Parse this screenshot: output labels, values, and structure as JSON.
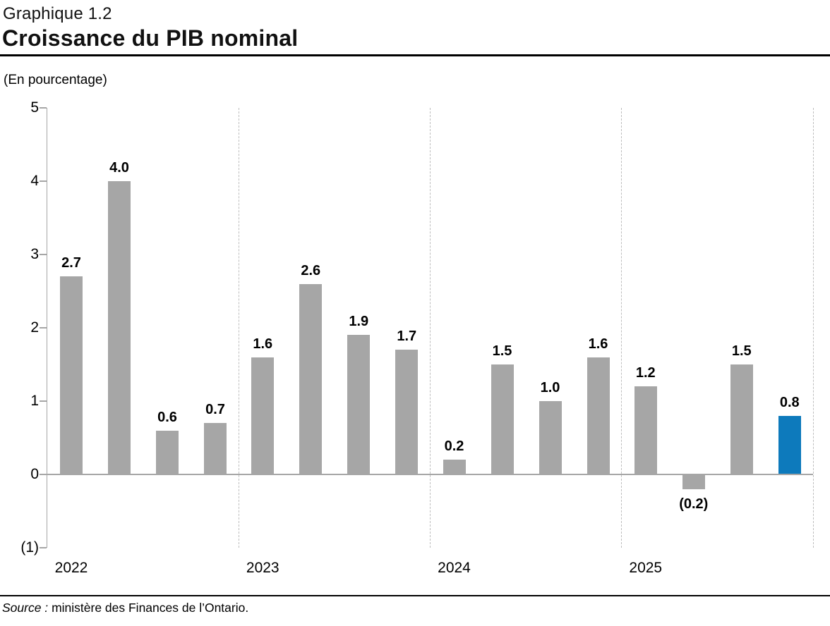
{
  "header": {
    "kicker": "Graphique 1.2",
    "title": "Croissance du PIB nominal"
  },
  "axis_note": "(En pourcentage)",
  "footer": {
    "source_label": "Source :",
    "source_text": "ministère des Finances de l’Ontario."
  },
  "chart_data": {
    "type": "bar",
    "title": "Croissance du PIB nominal",
    "unit_label": "(En pourcentage)",
    "xlabel": "",
    "ylabel": "",
    "ylim": [
      -1,
      5
    ],
    "grid": "vertical-dashed-year-separators",
    "legend": "none",
    "yticks": [
      {
        "value": 5,
        "label": "5"
      },
      {
        "value": 4,
        "label": "4"
      },
      {
        "value": 3,
        "label": "3"
      },
      {
        "value": 2,
        "label": "2"
      },
      {
        "value": 1,
        "label": "1"
      },
      {
        "value": 0,
        "label": "0"
      },
      {
        "value": -1,
        "label": "(1)"
      }
    ],
    "groups": [
      {
        "year": "2022",
        "values": [
          2.7,
          4.0,
          0.6,
          0.7
        ],
        "labels": [
          "2.7",
          "4.0",
          "0.6",
          "0.7"
        ]
      },
      {
        "year": "2023",
        "values": [
          1.6,
          2.6,
          1.9,
          1.7
        ],
        "labels": [
          "1.6",
          "2.6",
          "1.9",
          "1.7"
        ]
      },
      {
        "year": "2024",
        "values": [
          0.2,
          1.5,
          1.0,
          1.6
        ],
        "labels": [
          "0.2",
          "1.5",
          "1.0",
          "1.6"
        ]
      },
      {
        "year": "2025",
        "values": [
          1.2,
          -0.2,
          1.5,
          0.8
        ],
        "labels": [
          "1.2",
          "(0.2)",
          "1.5",
          "0.8"
        ]
      }
    ],
    "highlight": {
      "group_index": 3,
      "bar_index": 3
    },
    "colors": {
      "bar": "#a6a6a6",
      "highlight": "#0d7abc",
      "axis": "#a6a6a6",
      "gridline": "#bdbdbd",
      "label": "#000000"
    }
  }
}
